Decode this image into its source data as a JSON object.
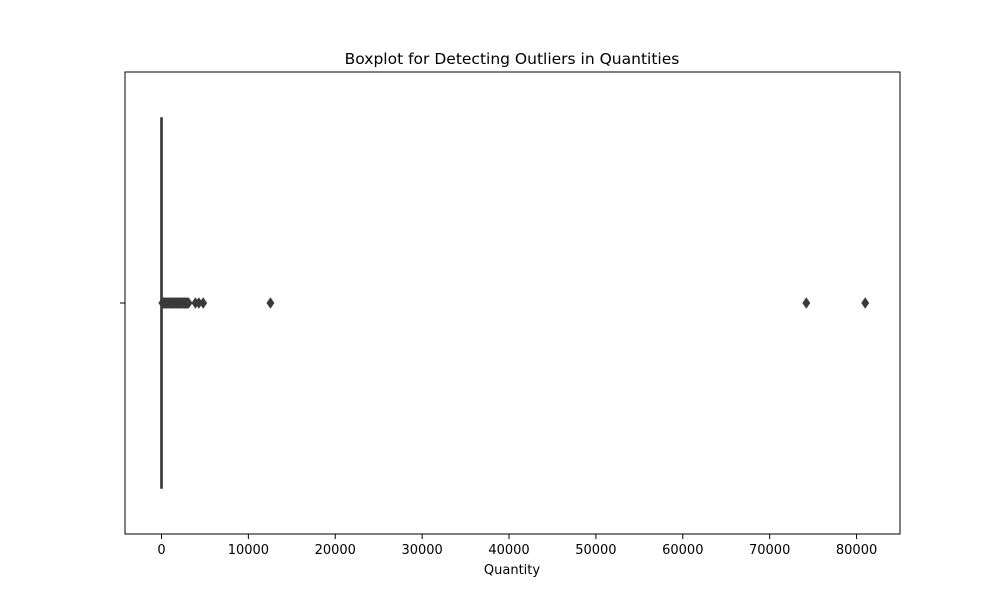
{
  "chart_data": {
    "type": "boxplot",
    "orientation": "horizontal",
    "title": "Boxplot for Detecting Outliers in Quantities",
    "xlabel": "Quantity",
    "ylabel": "",
    "xlim": [
      -4200,
      85000
    ],
    "xticks": [
      0,
      10000,
      20000,
      30000,
      40000,
      50000,
      60000,
      70000,
      80000
    ],
    "xtick_labels": [
      "0",
      "10000",
      "20000",
      "30000",
      "40000",
      "50000",
      "60000",
      "70000",
      "80000"
    ],
    "grid": false,
    "box": {
      "min": -10,
      "q1": 2,
      "median": 6,
      "q3": 12,
      "max": 27
    },
    "outliers": [
      100,
      200,
      300,
      400,
      500,
      600,
      700,
      800,
      900,
      1000,
      1100,
      1200,
      1300,
      1400,
      1500,
      1600,
      1700,
      1800,
      1900,
      2000,
      2100,
      2200,
      2300,
      2400,
      2500,
      2600,
      2700,
      2800,
      2900,
      3000,
      3114,
      3906,
      4300,
      4800,
      12540,
      74215,
      80995
    ],
    "colors": {
      "box": "#3a3a3a",
      "marker": "#3a3a3a"
    }
  }
}
